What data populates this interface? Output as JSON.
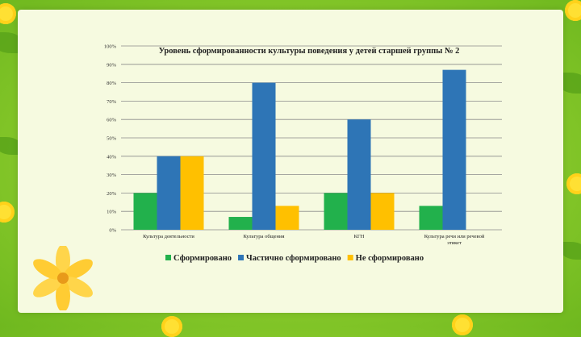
{
  "chart_data": {
    "type": "bar",
    "title": "Уровень сформированности культуры поведения у детей старшей группы № 2",
    "categories": [
      "Культура деятельности",
      "Культура общения",
      "КГН",
      [
        "Культура речи или речевой",
        "этикет"
      ]
    ],
    "series": [
      {
        "name": "Сформировано",
        "color": "#22b14c",
        "values": [
          20,
          7,
          20,
          13
        ]
      },
      {
        "name": "Частично сформировано",
        "color": "#2e75b6",
        "values": [
          40,
          80,
          60,
          87
        ]
      },
      {
        "name": "Не сформировано",
        "color": "#ffc000",
        "values": [
          40,
          13,
          20,
          0
        ]
      }
    ],
    "ylim": [
      0,
      100
    ],
    "yticks": [
      "0%",
      "10%",
      "20%",
      "30%",
      "40%",
      "50%",
      "60%",
      "70%",
      "80%",
      "90%",
      "100%"
    ],
    "grid": true,
    "legend": "bottom"
  }
}
